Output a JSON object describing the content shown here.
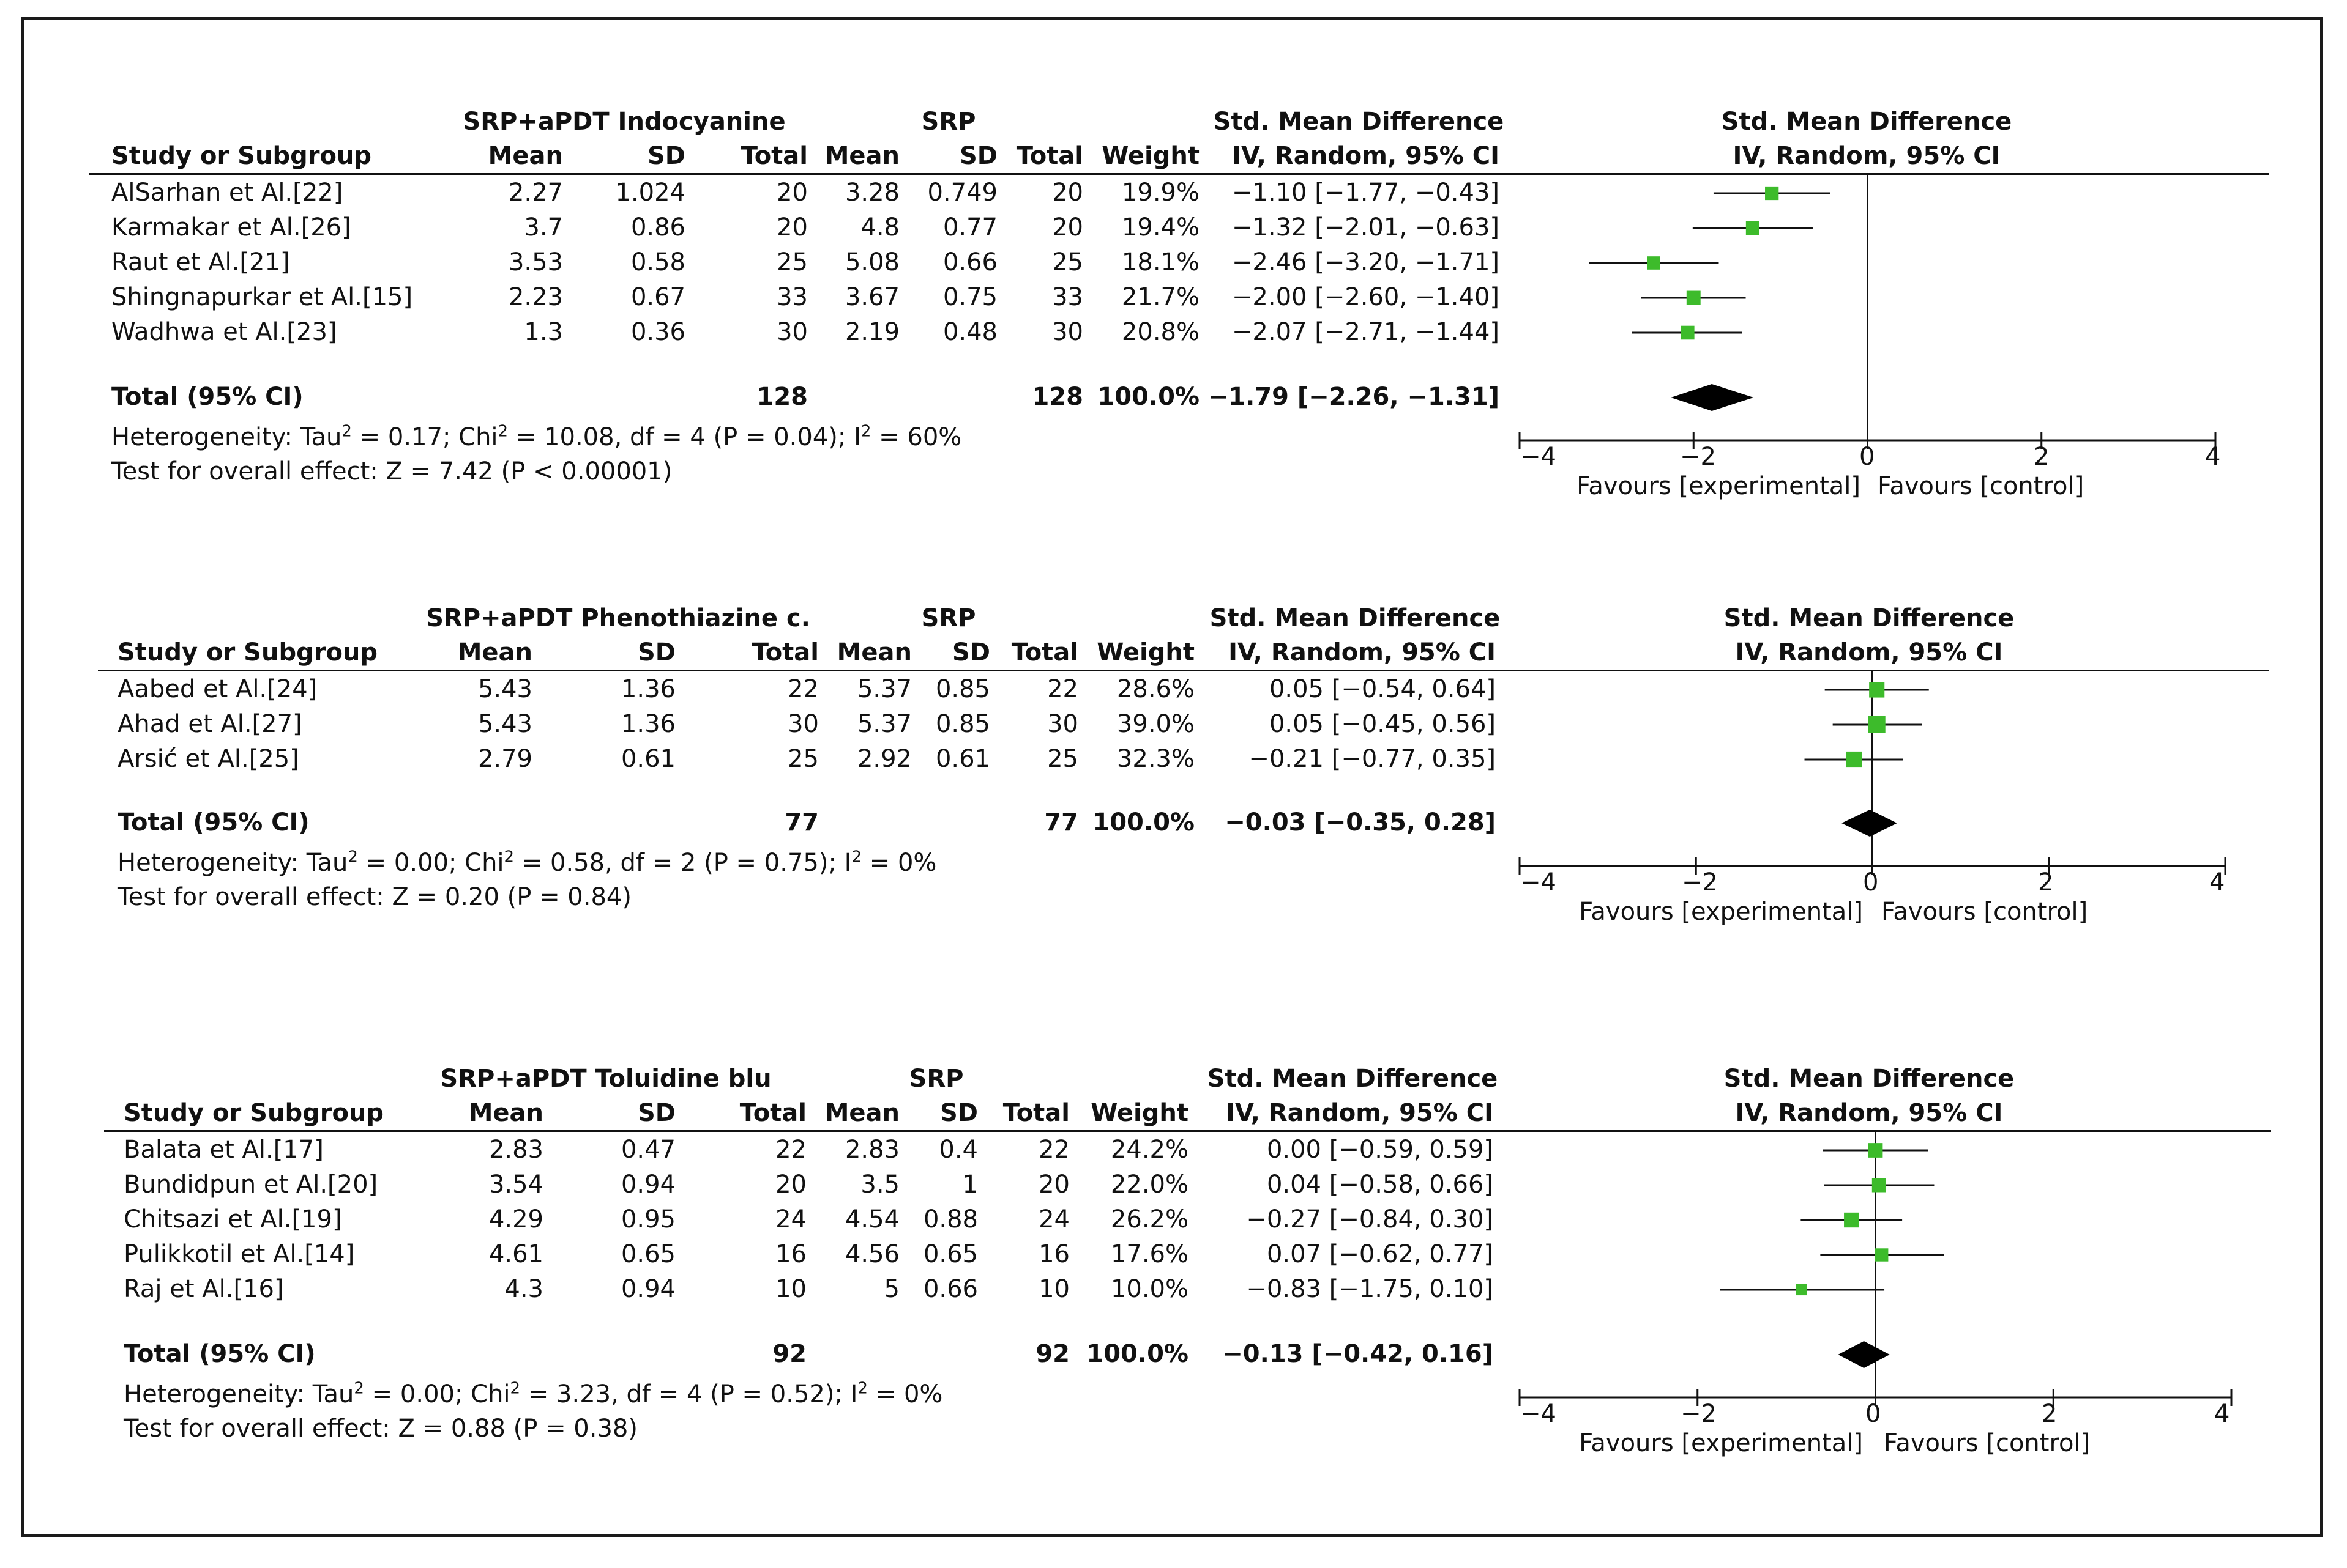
{
  "chart_data": [
    {
      "type": "forest",
      "group_label": "SRP+aPDT Indocyanine",
      "control_label": "SRP",
      "headers": {
        "study": "Study or Subgroup",
        "mean": "Mean",
        "sd": "SD",
        "total": "Total",
        "weight": "Weight",
        "smd_title": "Std. Mean Difference",
        "smd_method": "IV, Random, 95% CI"
      },
      "studies": [
        {
          "name": "AlSarhan et Al.[22]",
          "exp_mean": "2.27",
          "exp_sd": "1.024",
          "exp_total": "20",
          "ctl_mean": "3.28",
          "ctl_sd": "0.749",
          "ctl_total": "20",
          "weight": "19.9%",
          "ci_text": "−1.10 [−1.77, −0.43]",
          "est": -1.1,
          "lo": -1.77,
          "hi": -0.43,
          "w": 19.9
        },
        {
          "name": "Karmakar et Al.[26]",
          "exp_mean": "3.7",
          "exp_sd": "0.86",
          "exp_total": "20",
          "ctl_mean": "4.8",
          "ctl_sd": "0.77",
          "ctl_total": "20",
          "weight": "19.4%",
          "ci_text": "−1.32 [−2.01, −0.63]",
          "est": -1.32,
          "lo": -2.01,
          "hi": -0.63,
          "w": 19.4
        },
        {
          "name": "Raut et Al.[21]",
          "exp_mean": "3.53",
          "exp_sd": "0.58",
          "exp_total": "25",
          "ctl_mean": "5.08",
          "ctl_sd": "0.66",
          "ctl_total": "25",
          "weight": "18.1%",
          "ci_text": "−2.46 [−3.20, −1.71]",
          "est": -2.46,
          "lo": -3.2,
          "hi": -1.71,
          "w": 18.1
        },
        {
          "name": "Shingnapurkar et Al.[15]",
          "exp_mean": "2.23",
          "exp_sd": "0.67",
          "exp_total": "33",
          "ctl_mean": "3.67",
          "ctl_sd": "0.75",
          "ctl_total": "33",
          "weight": "21.7%",
          "ci_text": "−2.00 [−2.60, −1.40]",
          "est": -2.0,
          "lo": -2.6,
          "hi": -1.4,
          "w": 21.7
        },
        {
          "name": "Wadhwa et Al.[23]",
          "exp_mean": "1.3",
          "exp_sd": "0.36",
          "exp_total": "30",
          "ctl_mean": "2.19",
          "ctl_sd": "0.48",
          "ctl_total": "30",
          "weight": "20.8%",
          "ci_text": "−2.07 [−2.71, −1.44]",
          "est": -2.07,
          "lo": -2.71,
          "hi": -1.44,
          "w": 20.8
        }
      ],
      "total": {
        "label": "Total (95% CI)",
        "exp_total": "128",
        "ctl_total": "128",
        "weight": "100.0%",
        "ci_text": "−1.79 [−2.26, −1.31]",
        "est": -1.79,
        "lo": -2.26,
        "hi": -1.31
      },
      "heterogeneity": {
        "prefix": "Heterogeneity: Tau",
        "mid": " = 0.17; Chi",
        "mid2": " = 10.08, df = 4 (P = 0.04); I",
        "end": " = 60%",
        "sup": "2"
      },
      "overall_effect": "Test for overall effect: Z = 7.42 (P < 0.00001)",
      "axis": {
        "min": -4,
        "max": 4,
        "ticks": [
          -4,
          -2,
          0,
          2,
          4
        ],
        "tick_labels": [
          "−4",
          "−2",
          "0",
          "2",
          "4"
        ],
        "left_label": "Favours [experimental]",
        "right_label": "Favours [control]"
      }
    },
    {
      "type": "forest",
      "group_label": "SRP+aPDT Phenothiazine c.",
      "control_label": "SRP",
      "headers": {
        "study": "Study or Subgroup",
        "mean": "Mean",
        "sd": "SD",
        "total": "Total",
        "weight": "Weight",
        "smd_title": "Std. Mean Difference",
        "smd_method": "IV, Random, 95% CI"
      },
      "studies": [
        {
          "name": "Aabed et Al.[24]",
          "exp_mean": "5.43",
          "exp_sd": "1.36",
          "exp_total": "22",
          "ctl_mean": "5.37",
          "ctl_sd": "0.85",
          "ctl_total": "22",
          "weight": "28.6%",
          "ci_text": "0.05 [−0.54, 0.64]",
          "est": 0.05,
          "lo": -0.54,
          "hi": 0.64,
          "w": 28.6
        },
        {
          "name": "Ahad et Al.[27]",
          "exp_mean": "5.43",
          "exp_sd": "1.36",
          "exp_total": "30",
          "ctl_mean": "5.37",
          "ctl_sd": "0.85",
          "ctl_total": "30",
          "weight": "39.0%",
          "ci_text": "0.05 [−0.45, 0.56]",
          "est": 0.05,
          "lo": -0.45,
          "hi": 0.56,
          "w": 39.0
        },
        {
          "name": "Arsić et Al.[25]",
          "exp_mean": "2.79",
          "exp_sd": "0.61",
          "exp_total": "25",
          "ctl_mean": "2.92",
          "ctl_sd": "0.61",
          "ctl_total": "25",
          "weight": "32.3%",
          "ci_text": "−0.21 [−0.77, 0.35]",
          "est": -0.21,
          "lo": -0.77,
          "hi": 0.35,
          "w": 32.3
        }
      ],
      "total": {
        "label": "Total (95% CI)",
        "exp_total": "77",
        "ctl_total": "77",
        "weight": "100.0%",
        "ci_text": "−0.03 [−0.35, 0.28]",
        "est": -0.03,
        "lo": -0.35,
        "hi": 0.28
      },
      "heterogeneity": {
        "prefix": "Heterogeneity: Tau",
        "mid": " = 0.00; Chi",
        "mid2": " = 0.58, df = 2 (P = 0.75); I",
        "end": " = 0%",
        "sup": "2"
      },
      "overall_effect": "Test for overall effect: Z = 0.20 (P = 0.84)",
      "axis": {
        "min": -4,
        "max": 4,
        "ticks": [
          -4,
          -2,
          0,
          2,
          4
        ],
        "tick_labels": [
          "−4",
          "−2",
          "0",
          "2",
          "4"
        ],
        "left_label": "Favours [experimental]",
        "right_label": "Favours [control]"
      }
    },
    {
      "type": "forest",
      "group_label": "SRP+aPDT Toluidine blu",
      "control_label": "SRP",
      "headers": {
        "study": "Study or Subgroup",
        "mean": "Mean",
        "sd": "SD",
        "total": "Total",
        "weight": "Weight",
        "smd_title": "Std. Mean Difference",
        "smd_method": "IV, Random, 95% CI"
      },
      "studies": [
        {
          "name": "Balata et Al.[17]",
          "exp_mean": "2.83",
          "exp_sd": "0.47",
          "exp_total": "22",
          "ctl_mean": "2.83",
          "ctl_sd": "0.4",
          "ctl_total": "22",
          "weight": "24.2%",
          "ci_text": "0.00 [−0.59, 0.59]",
          "est": 0.0,
          "lo": -0.59,
          "hi": 0.59,
          "w": 24.2
        },
        {
          "name": "Bundidpun et Al.[20]",
          "exp_mean": "3.54",
          "exp_sd": "0.94",
          "exp_total": "20",
          "ctl_mean": "3.5",
          "ctl_sd": "1",
          "ctl_total": "20",
          "weight": "22.0%",
          "ci_text": "0.04 [−0.58, 0.66]",
          "est": 0.04,
          "lo": -0.58,
          "hi": 0.66,
          "w": 22.0
        },
        {
          "name": "Chitsazi et Al.[19]",
          "exp_mean": "4.29",
          "exp_sd": "0.95",
          "exp_total": "24",
          "ctl_mean": "4.54",
          "ctl_sd": "0.88",
          "ctl_total": "24",
          "weight": "26.2%",
          "ci_text": "−0.27 [−0.84, 0.30]",
          "est": -0.27,
          "lo": -0.84,
          "hi": 0.3,
          "w": 26.2
        },
        {
          "name": "Pulikkotil et Al.[14]",
          "exp_mean": "4.61",
          "exp_sd": "0.65",
          "exp_total": "16",
          "ctl_mean": "4.56",
          "ctl_sd": "0.65",
          "ctl_total": "16",
          "weight": "17.6%",
          "ci_text": "0.07 [−0.62, 0.77]",
          "est": 0.07,
          "lo": -0.62,
          "hi": 0.77,
          "w": 17.6
        },
        {
          "name": "Raj et Al.[16]",
          "exp_mean": "4.3",
          "exp_sd": "0.94",
          "exp_total": "10",
          "ctl_mean": "5",
          "ctl_sd": "0.66",
          "ctl_total": "10",
          "weight": "10.0%",
          "ci_text": "−0.83 [−1.75, 0.10]",
          "est": -0.83,
          "lo": -1.75,
          "hi": 0.1,
          "w": 10.0
        }
      ],
      "total": {
        "label": "Total (95% CI)",
        "exp_total": "92",
        "ctl_total": "92",
        "weight": "100.0%",
        "ci_text": "−0.13 [−0.42, 0.16]",
        "est": -0.13,
        "lo": -0.42,
        "hi": 0.16
      },
      "heterogeneity": {
        "prefix": "Heterogeneity: Tau",
        "mid": " = 0.00; Chi",
        "mid2": " = 3.23, df = 4 (P = 0.52); I",
        "end": " = 0%",
        "sup": "2"
      },
      "overall_effect": "Test for overall effect: Z = 0.88 (P = 0.38)",
      "axis": {
        "min": -4,
        "max": 4,
        "ticks": [
          -4,
          -2,
          0,
          2,
          4
        ],
        "tick_labels": [
          "−4",
          "−2",
          "0",
          "2",
          "4"
        ],
        "left_label": "Favours [experimental]",
        "right_label": "Favours [control]"
      }
    }
  ],
  "colors": {
    "marker": "#3dbb2b",
    "line": "#111111",
    "diamond": "#000000"
  }
}
